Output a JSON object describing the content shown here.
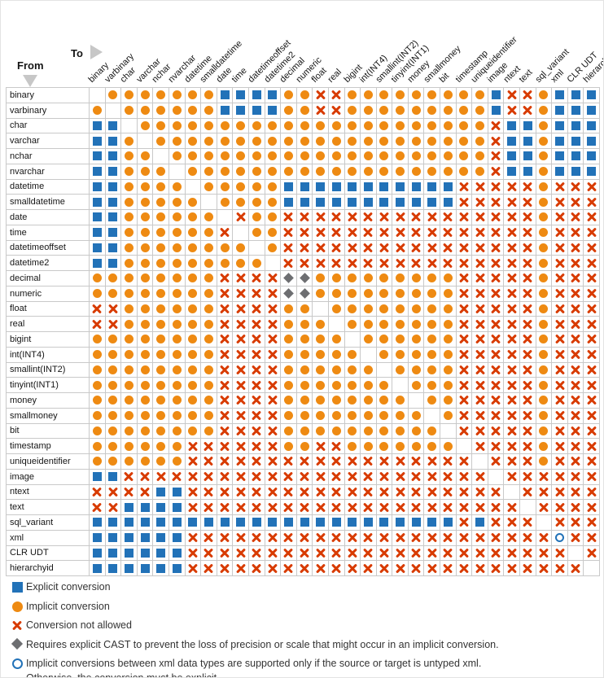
{
  "header": {
    "from_label": "From",
    "to_label": "To"
  },
  "colors": {
    "explicit": "#2272b8",
    "implicit": "#ee8a12",
    "not_allowed": "#d83b01",
    "diamond": "#6d6e71",
    "ring": "#2272b8"
  },
  "chart_data": {
    "type": "heatmap",
    "x_axis_label": "To",
    "y_axis_label": "From",
    "categories": [
      "binary",
      "varbinary",
      "char",
      "varchar",
      "nchar",
      "nvarchar",
      "datetime",
      "smalldatetime",
      "date",
      "time",
      "datetimeoffset",
      "datetime2",
      "decimal",
      "numeric",
      "float",
      "real",
      "bigint",
      "int(INT4)",
      "smallint(INT2)",
      "tinyint(INT1)",
      "money",
      "smallmoney",
      "bit",
      "timestamp",
      "uniqueidentifier",
      "image",
      "ntext",
      "text",
      "sql_variant",
      "xml",
      "CLR UDT",
      "hierarchyid"
    ],
    "values": [
      "SIIIIIIIEEEEIIXXIIIIIIIIIEXXIEEE",
      "ISIIIIIIEEEEIIXXIIIIIIIIIEXXIEEE",
      "EESIIIIIIIIIIIIIIIIIIIIIIXEEIEEE",
      "EEISIIIIIIIIIIIIIIIIIIIIIXEEIEEE",
      "EEIISIIIIIIIIIIIIIIIIIIIIXEEIEEE",
      "EEIIISIIIIIIIIIIIIIIIIIIIXEEIEEE",
      "EEIIIISIIIIIEEEEEEEEEEEXXXXXIXXX",
      "EEIIIIISIIIIEEEEEEEEEEEXXXXXIXXX",
      "EEIIIIIISXIIXXXXXXXXXXXXXXXXIXXX",
      "EEIIIIIIXSIIXXXXXXXXXXXXXXXXIXXX",
      "EEIIIIIIIISIXXXXXXXXXXXXXXXXIXXX",
      "EEIIIIIIIIISXXXXXXXXXXXXXXXXIXXX",
      "IIIIIIIIXXXXDDIIIIIIIIIXXXXXIXXX",
      "IIIIIIIIXXXXDDIIIIIIIIIXXXXXIXXX",
      "XXIIIIIIXXXXIISIIIIIIIIXXXXXIXXX",
      "XXIIIIIIXXXXIIISIIIIIIIXXXXXIXXX",
      "IIIIIIIIXXXXIIIISIIIIIIXXXXXIXXX",
      "IIIIIIIIXXXXIIIIISIIIIIXXXXXIXXX",
      "IIIIIIIIXXXXIIIIIISIIIIXXXXXIXXX",
      "IIIIIIIIXXXXIIIIIIISIIIXXXXXIXXX",
      "IIIIIIIIXXXXIIIIIIIISIIXXXXXIXXX",
      "IIIIIIIIXXXXIIIIIIIIISIXXXXXIXXX",
      "IIIIIIIIXXXXIIIIIIIIIISXXXXXIXXX",
      "IIIIIIXXXXXXIIXXIIIIIIISXXXXIXXX",
      "IIIIIIXXXXXXXXXXXXXXXXXXSXXXIXXX",
      "EEXXXXXXXXXXXXXXXXXXXXXXXSXXXXXX",
      "XXXXEEXXXXXXXXXXXXXXXXXXXXSXXXXX",
      "XXEEEEXXXXXXXXXXXXXXXXXXXXXSXXXX",
      "EEEEEEEEEEEEEEEEEEEEEEEXEXXXSXXX",
      "EEEEEEXXXXXXXXXXXXXXXXXXXXXXXOXX",
      "EEEEEEXXXXXXXXXXXXXXXXXXXXXXXXSX",
      "EEEEEEXXXXXXXXXXXXXXXXXXXXXXXXXS"
    ],
    "code_meanings": {
      "E": "Explicit conversion",
      "I": "Implicit conversion",
      "X": "Conversion not allowed",
      "D": "Requires explicit CAST to prevent the loss of precision or scale that might occur in an implicit conversion",
      "O": "Implicit conversions between xml data types are supported only if the source or target is untyped xml; otherwise the conversion must be explicit",
      "S": "Same data type (blank cell)"
    },
    "legend_position": "bottom"
  },
  "legend": [
    {
      "code": "E",
      "lines": [
        "Explicit conversion"
      ]
    },
    {
      "code": "I",
      "lines": [
        "Implicit conversion"
      ]
    },
    {
      "code": "X",
      "lines": [
        "Conversion not allowed"
      ]
    },
    {
      "code": "D",
      "lines": [
        "Requires explicit CAST to prevent the loss of precision or scale that might occur in an implicit conversion."
      ]
    },
    {
      "code": "O",
      "lines": [
        "Implicit conversions between xml data types are supported only if the source or target is untyped xml.",
        "Otherwise, the conversion must be explicit."
      ]
    }
  ]
}
